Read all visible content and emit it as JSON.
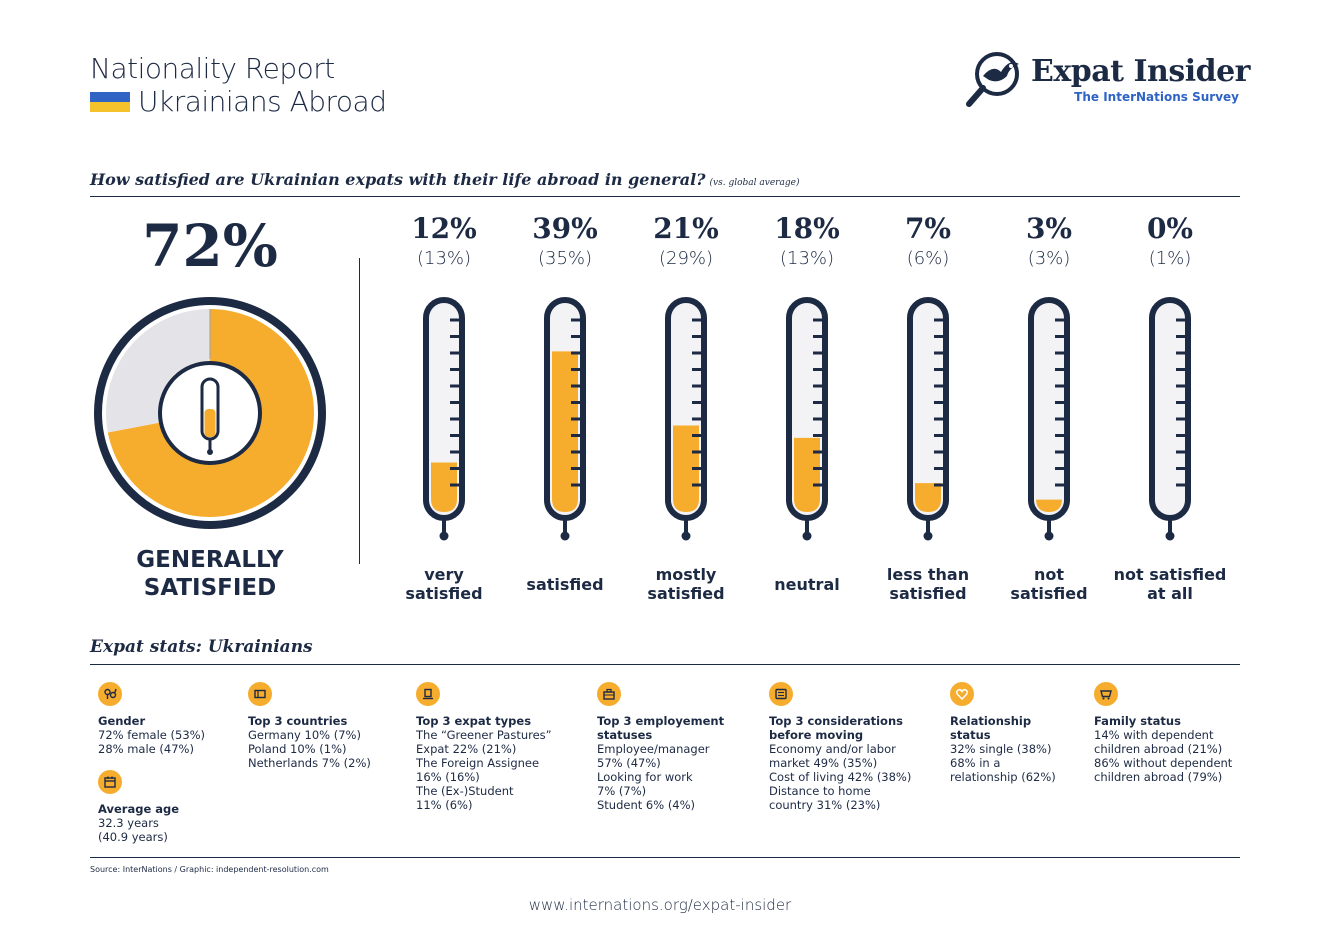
{
  "header": {
    "title": "Nationality Report",
    "subtitle": "Ukrainians Abroad",
    "flag_colors": [
      "#2f63c4",
      "#f6c22c"
    ]
  },
  "logo": {
    "name": "Expat Insider",
    "tagline": "The InterNations Survey",
    "icon": "magnifier-bird-icon"
  },
  "question": {
    "text": "How satisfied are Ukrainian expats with their life abroad in general?",
    "note": "(vs. global average)"
  },
  "summary": {
    "value": 72,
    "label": "72%",
    "caption_line1": "GENERALLY",
    "caption_line2": "SATISFIED"
  },
  "colors": {
    "navy": "#1d2a44",
    "accent": "#f6ac2c",
    "empty": "#e4e4e8",
    "tube": "#f3f3f6"
  },
  "chart_data": {
    "type": "bar",
    "title": "How satisfied are Ukrainian expats with their life abroad in general?",
    "categories": [
      "very satisfied",
      "satisfied",
      "mostly satisfied",
      "neutral",
      "less than satisfied",
      "not satisfied",
      "not satisfied at all"
    ],
    "series": [
      {
        "name": "Ukrainians",
        "values": [
          12,
          39,
          21,
          18,
          7,
          3,
          0
        ]
      },
      {
        "name": "global average",
        "values": [
          13,
          35,
          29,
          13,
          6,
          3,
          1
        ]
      }
    ],
    "display": [
      {
        "pct": "12%",
        "avg": "(13%)",
        "line1": "very",
        "line2": "satisfied"
      },
      {
        "pct": "39%",
        "avg": "(35%)",
        "line1": "satisfied",
        "line2": ""
      },
      {
        "pct": "21%",
        "avg": "(29%)",
        "line1": "mostly",
        "line2": "satisfied"
      },
      {
        "pct": "18%",
        "avg": "(13%)",
        "line1": "neutral",
        "line2": ""
      },
      {
        "pct": "7%",
        "avg": "(6%)",
        "line1": "less than",
        "line2": "satisfied"
      },
      {
        "pct": "3%",
        "avg": "(3%)",
        "line1": "not",
        "line2": "satisfied"
      },
      {
        "pct": "0%",
        "avg": "(1%)",
        "line1": "not satisfied",
        "line2": "at all"
      }
    ],
    "ylim": [
      0,
      50
    ]
  },
  "stats": {
    "title": "Expat stats: Ukrainians",
    "gender": {
      "icon": "gender-icon",
      "title": "Gender",
      "lines": [
        "72% female (53%)",
        "28% male (47%)"
      ]
    },
    "age": {
      "icon": "calendar-icon",
      "title": "Average age",
      "lines": [
        "32.3 years",
        "(40.9 years)"
      ]
    },
    "countries": {
      "icon": "map-icon",
      "title": "Top 3 countries",
      "lines": [
        "Germany 10% (7%)",
        "Poland 10% (1%)",
        "Netherlands 7% (2%)"
      ]
    },
    "types": {
      "icon": "signpost-icon",
      "title": "Top 3 expat types",
      "lines": [
        "The “Greener Pastures”",
        "Expat 22% (21%)",
        "The Foreign Assignee",
        "16% (16%)",
        "The (Ex-)Student",
        "11% (6%)"
      ]
    },
    "employment": {
      "icon": "briefcase-icon",
      "title_line1": "Top 3 employement",
      "title_line2": "statuses",
      "lines": [
        "Employee/manager",
        "57%  (47%)",
        "Looking for work",
        "7% (7%)",
        "Student 6% (4%)"
      ]
    },
    "considerations": {
      "icon": "checklist-icon",
      "title_line1": "Top 3 considerations",
      "title_line2": "before moving",
      "lines": [
        "Economy and/or labor",
        "market 49% (35%)",
        "Cost of living 42% (38%)",
        "Distance to home",
        "country 31% (23%)"
      ]
    },
    "relationship": {
      "icon": "heart-icon",
      "title_line1": "Relationship",
      "title_line2": "status",
      "lines": [
        "32% single (38%)",
        "68% in a",
        "relationship (62%)"
      ]
    },
    "family": {
      "icon": "stroller-icon",
      "title": "Family status",
      "lines": [
        "14% with dependent",
        "children abroad (21%)",
        "86% without dependent",
        "children abroad (79%)"
      ]
    }
  },
  "footer": {
    "source": "Source: InterNations / Graphic: independent-resolution.com",
    "url": "www.internations.org/expat-insider"
  }
}
